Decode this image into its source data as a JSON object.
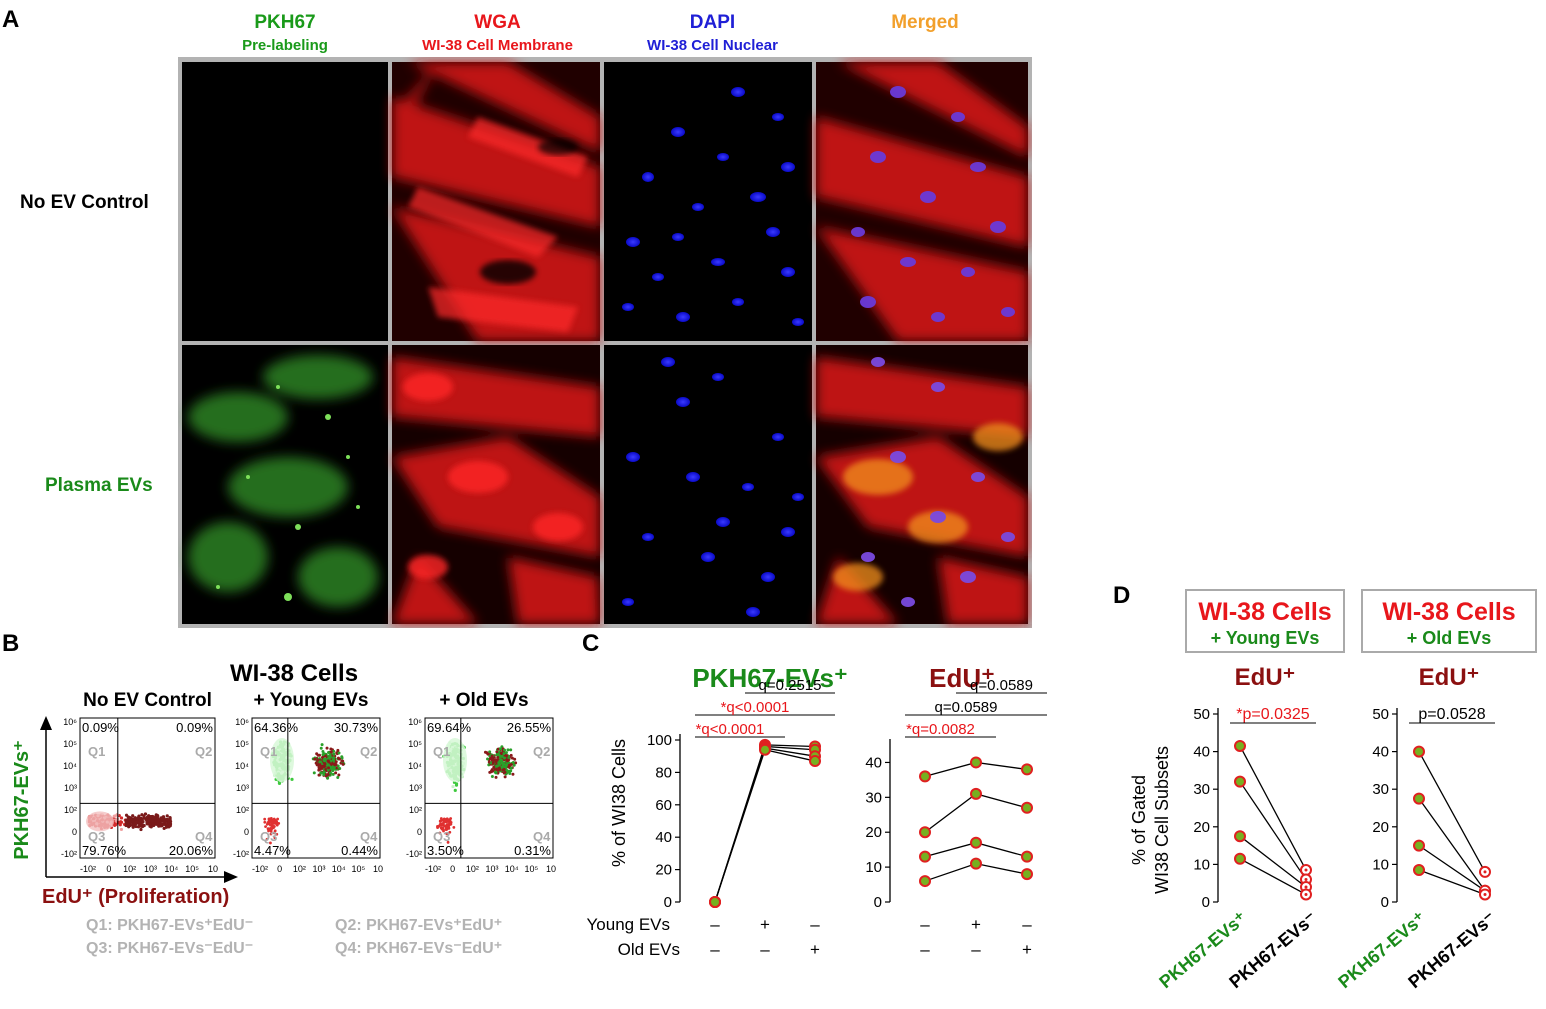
{
  "panels": {
    "a": "A",
    "b": "B",
    "c": "C",
    "d": "D"
  },
  "colors": {
    "green": "#1a8a1a",
    "red": "#e8161b",
    "blue": "#1f1fd6",
    "orange": "#f2a02c",
    "darkred": "#8b1010",
    "gray": "#b3b3b3"
  },
  "panelA": {
    "columns": [
      {
        "title": "PKH67",
        "subtitle": "Pre-labeling",
        "color": "#1a9a1a"
      },
      {
        "title": "WGA",
        "subtitle": "WI-38 Cell Membrane",
        "color": "#e8161b"
      },
      {
        "title": "DAPI",
        "subtitle": "WI-38 Cell Nuclear",
        "color": "#1f1fd6"
      },
      {
        "title": "Merged",
        "subtitle": "",
        "color": "#f2a02c"
      }
    ],
    "rows": [
      {
        "label": "No EV Control",
        "color": "#000000"
      },
      {
        "label": "Plasma EVs",
        "color": "#1a8a1a"
      }
    ]
  },
  "panelB": {
    "title": "WI-38 Cells",
    "plots": [
      {
        "title": "No EV Control",
        "q1": "0.09%",
        "q2": "0.09%",
        "q3": "79.76%",
        "q4": "20.06%"
      },
      {
        "title": "+ Young EVs",
        "q1": "64.36%",
        "q2": "30.73%",
        "q3": "4.47%",
        "q4": "0.44%"
      },
      {
        "title": "+ Old EVs",
        "q1": "69.64%",
        "q2": "26.55%",
        "q3": "3.50%",
        "q4": "0.31%"
      }
    ],
    "quad_names": [
      "Q1",
      "Q2",
      "Q3",
      "Q4"
    ],
    "y_ticks": [
      "10⁶",
      "10⁵",
      "10⁴",
      "10³",
      "10²",
      "0",
      "-10²"
    ],
    "x_ticks": [
      "-10²",
      "0",
      "10²",
      "10³",
      "10⁴",
      "10⁵",
      "10"
    ],
    "ylabel": "PKH67-EVs⁺",
    "xlabel": "EdU⁺ (Proliferation)",
    "legend": [
      "Q1: PKH67-EVs⁺EdU⁻",
      "Q2: PKH67-EVs⁺EdU⁺",
      "Q3: PKH67-EVs⁻EdU⁻",
      "Q4: PKH67-EVs⁻EdU⁺"
    ]
  },
  "panelC": {
    "ylabel": "% of WI38 Cells",
    "row_labels": [
      "Young EVs",
      "Old EVs"
    ],
    "conditions_young": [
      "–",
      "+",
      "–"
    ],
    "conditions_old": [
      "–",
      "–",
      "+"
    ]
  },
  "panelD": {
    "ylabel_1": "% of Gated",
    "ylabel_2": "WI38 Cell Subsets",
    "boxes": [
      {
        "line1": "WI-38 Cells",
        "line2": "+ Young EVs"
      },
      {
        "line1": "WI-38 Cells",
        "line2": "+ Old EVs"
      }
    ],
    "subtitle": "EdU⁺",
    "xlabels": [
      "PKH67-EVs⁺",
      "PKH67-EVs⁻"
    ]
  },
  "chart_data": [
    {
      "type": "line",
      "title": "PKH67-EVs⁺",
      "ylabel": "% of WI38 Cells",
      "ylim": [
        0,
        100
      ],
      "yticks": [
        0,
        20,
        40,
        60,
        80,
        100
      ],
      "x": [
        1,
        2,
        3
      ],
      "series": [
        {
          "values": [
            0,
            97,
            96
          ]
        },
        {
          "values": [
            0,
            96,
            94
          ]
        },
        {
          "values": [
            0,
            95,
            90
          ]
        },
        {
          "values": [
            0,
            94,
            87
          ]
        }
      ],
      "annotations": [
        {
          "text": "q=0.2515",
          "from": 2,
          "to": 3,
          "color": "#000000"
        },
        {
          "text": "*q<0.0001",
          "from": 1,
          "to": 3,
          "color": "#e8161b"
        },
        {
          "text": "*q<0.0001",
          "from": 1,
          "to": 2,
          "color": "#e8161b"
        }
      ]
    },
    {
      "type": "line",
      "title": "EdU⁺",
      "ylim": [
        0,
        45
      ],
      "yticks": [
        0,
        10,
        20,
        30,
        40
      ],
      "x": [
        1,
        2,
        3
      ],
      "series": [
        {
          "values": [
            36,
            40,
            38
          ]
        },
        {
          "values": [
            20,
            31,
            27
          ]
        },
        {
          "values": [
            13,
            17,
            13
          ]
        },
        {
          "values": [
            6,
            11,
            8
          ]
        }
      ],
      "annotations": [
        {
          "text": "q=0.0589",
          "from": 2,
          "to": 3,
          "color": "#000000"
        },
        {
          "text": "q=0.0589",
          "from": 1,
          "to": 3,
          "color": "#000000"
        },
        {
          "text": "*q=0.0082",
          "from": 1,
          "to": 2,
          "color": "#e8161b"
        }
      ]
    },
    {
      "type": "line",
      "title": "EdU⁺",
      "ylim": [
        0,
        50
      ],
      "yticks": [
        0,
        10,
        20,
        30,
        40,
        50
      ],
      "categories": [
        "PKH67-EVs⁺",
        "PKH67-EVs⁻"
      ],
      "series": [
        {
          "values": [
            41.5,
            8.5
          ]
        },
        {
          "values": [
            32,
            6
          ]
        },
        {
          "values": [
            17.5,
            4
          ]
        },
        {
          "values": [
            11.5,
            2
          ]
        }
      ],
      "annotations": [
        {
          "text": "*p=0.0325",
          "color": "#e8161b"
        }
      ]
    },
    {
      "type": "line",
      "title": "EdU⁺",
      "ylim": [
        0,
        50
      ],
      "yticks": [
        0,
        10,
        20,
        30,
        40,
        50
      ],
      "categories": [
        "PKH67-EVs⁺",
        "PKH67-EVs⁻"
      ],
      "series": [
        {
          "values": [
            40,
            8
          ]
        },
        {
          "values": [
            27.5,
            3
          ]
        },
        {
          "values": [
            15,
            3
          ]
        },
        {
          "values": [
            8.5,
            2
          ]
        }
      ],
      "annotations": [
        {
          "text": "p=0.0528",
          "color": "#000000"
        }
      ]
    }
  ]
}
